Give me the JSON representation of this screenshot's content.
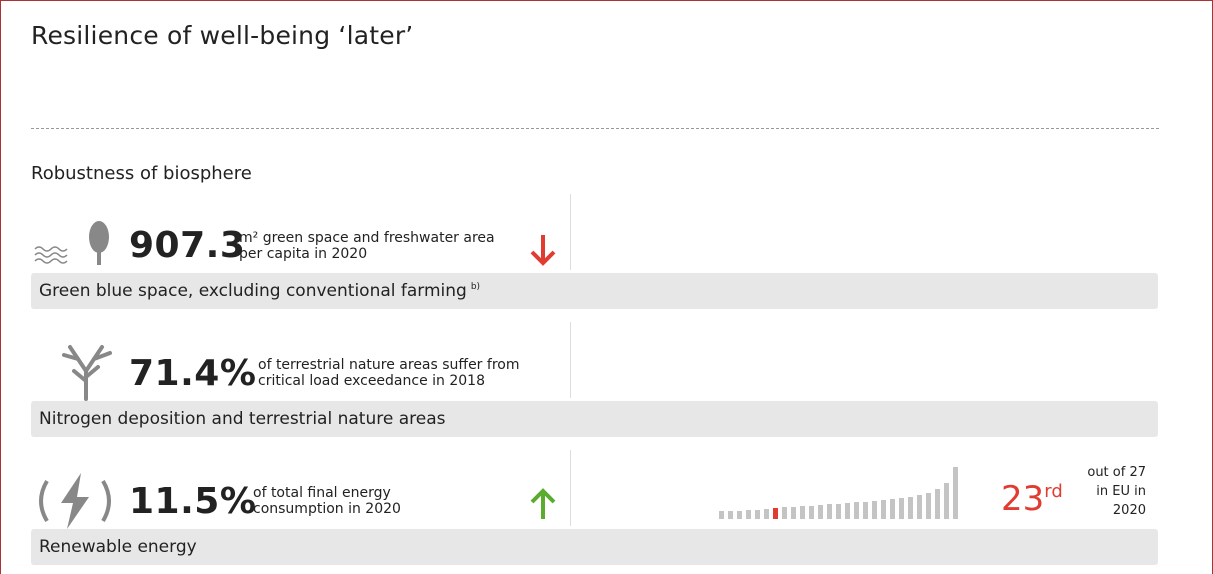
{
  "header": {
    "title": "Resilience of well-being ‘later’"
  },
  "section": {
    "title": "Robustness of biosphere"
  },
  "indicators": [
    {
      "value": "907.3",
      "description": "m² green space and freshwater area per capita in 2020",
      "label": "Green blue space, excluding conventional farming",
      "footnote": "b)"
    },
    {
      "value": "71.4%",
      "description": "of terrestrial nature areas suffer from critical load exceedance in 2018",
      "label": "Nitrogen deposition and terrestrial nature areas"
    },
    {
      "value": "11.5%",
      "description": "of total final energy consumption in 2020",
      "label": "Renewable energy",
      "rank": "23",
      "rank_suffix": "rd",
      "rank_note": "out of 27 in EU in 2020"
    }
  ]
}
